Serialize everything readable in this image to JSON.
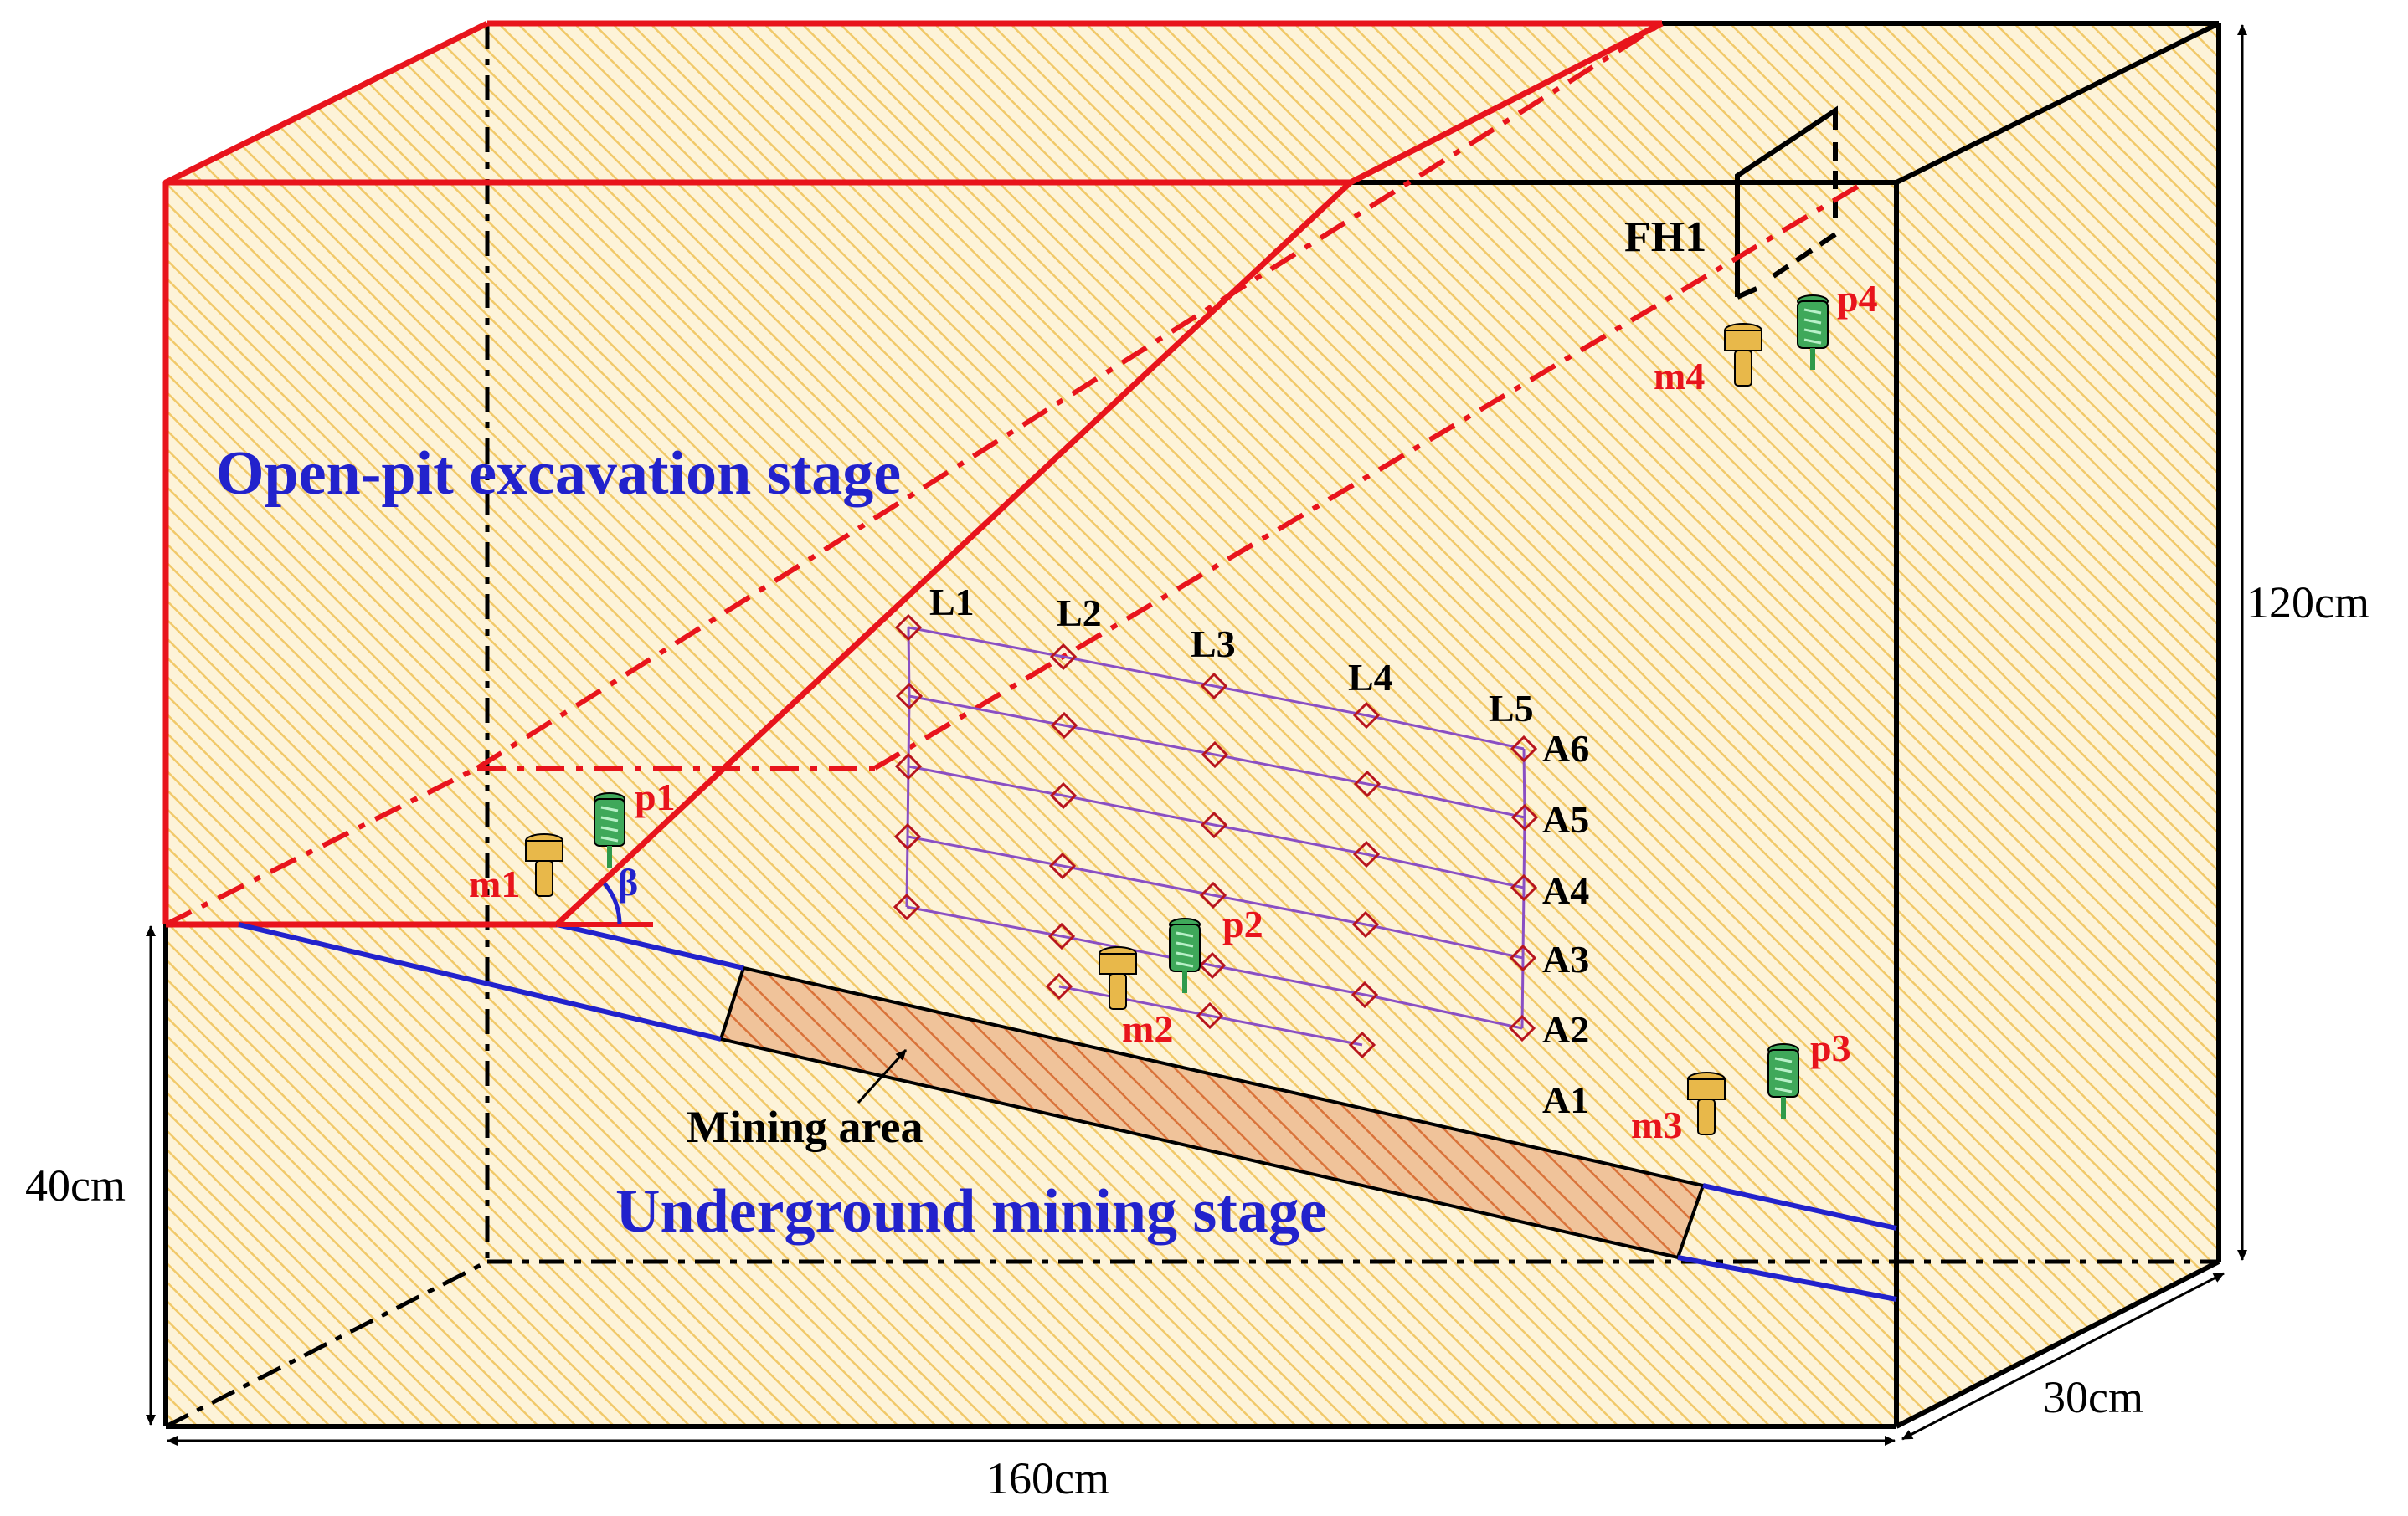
{
  "colors": {
    "background": "#fdf3d8",
    "hatch": "#f1c96a",
    "red": "#e8141c",
    "blue": "#2222cc",
    "purple": "#8a4fc4",
    "point": "#b8141c",
    "mining_fill": "#f0c39a",
    "mining_hatch": "#d9733a",
    "sensor_m": "#e8b84a",
    "sensor_p": "#3fa85a"
  },
  "labels": {
    "open_pit": "Open-pit excavation stage",
    "underground": "Underground mining stage",
    "mining_area": "Mining area",
    "fh1": "FH1",
    "beta": "β"
  },
  "dimensions": {
    "height": "120cm",
    "base_height": "40cm",
    "length": "160cm",
    "depth": "30cm"
  },
  "survey_lines": [
    "L1",
    "L2",
    "L3",
    "L4",
    "L5"
  ],
  "survey_rows": [
    "A6",
    "A5",
    "A4",
    "A3",
    "A2",
    "A1"
  ],
  "sensors": [
    {
      "m": "m1",
      "p": "p1"
    },
    {
      "m": "m2",
      "p": "p2"
    },
    {
      "m": "m3",
      "p": "p3"
    },
    {
      "m": "m4",
      "p": "p4"
    }
  ]
}
